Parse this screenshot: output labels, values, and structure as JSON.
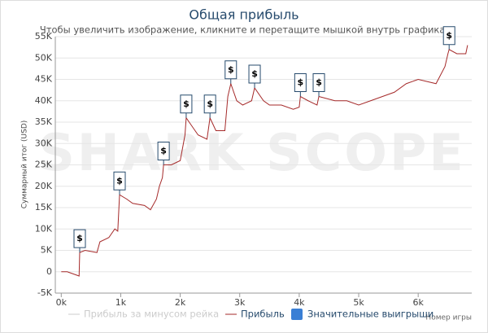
{
  "chart_data": {
    "type": "line",
    "title": "Общая прибыль",
    "subtitle": "Чтобы увеличить изображение, кликните и перетащите мышкой внутрь графика.",
    "y_label": "Суммарный итог (USD)",
    "x_label": "Номер игры",
    "watermark": "SHARK SCOPE",
    "xlim": [
      -100,
      6900
    ],
    "ylim": [
      -5000,
      55000
    ],
    "xticks": [
      {
        "value": 0,
        "label": "0k"
      },
      {
        "value": 1000,
        "label": "1k"
      },
      {
        "value": 2000,
        "label": "2k"
      },
      {
        "value": 3000,
        "label": "3k"
      },
      {
        "value": 4000,
        "label": "4k"
      },
      {
        "value": 5000,
        "label": "5k"
      },
      {
        "value": 6000,
        "label": "6k"
      }
    ],
    "yticks": [
      {
        "value": -5000,
        "label": "-5K"
      },
      0,
      {
        "value": 5000,
        "label": "5K"
      },
      {
        "value": 10000,
        "label": "10K"
      },
      {
        "value": 15000,
        "label": "15K"
      },
      {
        "value": 20000,
        "label": "20K"
      },
      {
        "value": 25000,
        "label": "25K"
      },
      {
        "value": 30000,
        "label": "30K"
      },
      {
        "value": 35000,
        "label": "35K"
      },
      {
        "value": 40000,
        "label": "40K"
      },
      {
        "value": 45000,
        "label": "45K"
      },
      {
        "value": 50000,
        "label": "50K"
      },
      {
        "value": 55000,
        "label": "55K"
      }
    ],
    "grid": true,
    "hidden_series": {
      "name": "Прибыль за минусом рейка",
      "color": "#cccccc"
    },
    "series": [
      {
        "name": "Прибыль",
        "color": "#a52a2a",
        "x": [
          0,
          100,
          200,
          300,
          310,
          400,
          600,
          650,
          800,
          900,
          950,
          980,
          1100,
          1200,
          1400,
          1500,
          1600,
          1650,
          1700,
          1720,
          1850,
          2000,
          2080,
          2100,
          2200,
          2300,
          2450,
          2500,
          2600,
          2750,
          2800,
          2850,
          2950,
          3050,
          3200,
          3250,
          3400,
          3500,
          3700,
          3900,
          4000,
          4020,
          4150,
          4300,
          4330,
          4600,
          4800,
          5000,
          5200,
          5400,
          5600,
          5800,
          6000,
          6300,
          6450,
          6500,
          6520,
          6650,
          6800,
          6830
        ],
        "values": [
          0,
          0,
          -500,
          -1000,
          4500,
          5000,
          4500,
          7000,
          8000,
          10000,
          9500,
          18000,
          17000,
          16000,
          15500,
          14500,
          17000,
          20000,
          22000,
          25000,
          25000,
          26000,
          32000,
          36000,
          34000,
          32000,
          31000,
          36000,
          33000,
          33000,
          41000,
          44000,
          40000,
          39000,
          40000,
          43000,
          40000,
          39000,
          39000,
          38000,
          38500,
          41000,
          40000,
          39000,
          41000,
          40000,
          40000,
          39000,
          40000,
          41000,
          42000,
          44000,
          45000,
          44000,
          48000,
          51000,
          52000,
          51000,
          51000,
          53000
        ]
      }
    ],
    "big_wins": {
      "name": "Значительные выигрыши",
      "color": "#3a7fd5",
      "label": "$",
      "x": [
        310,
        980,
        1720,
        2100,
        2500,
        2850,
        3250,
        4020,
        4330,
        6520
      ],
      "values": [
        4500,
        18000,
        25000,
        36000,
        36000,
        44000,
        43000,
        41000,
        41000,
        52000
      ]
    }
  }
}
